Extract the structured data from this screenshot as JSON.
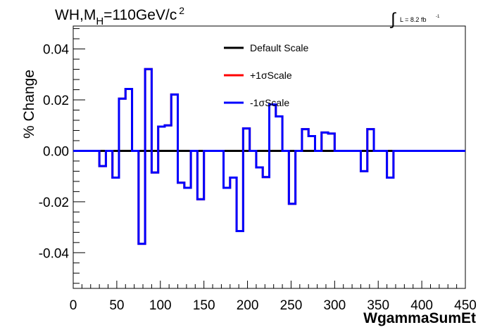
{
  "chart_data": {
    "type": "line",
    "title_main": "WH,M",
    "title_sub": "H",
    "title_rest": "=110GeV/c",
    "title_sup": "2",
    "lumi_label": "L = 8.2 fb",
    "lumi_sup": "-1",
    "xlabel": "WgammaSumEt",
    "ylabel": "% Change",
    "xlim": [
      0,
      450
    ],
    "ylim": [
      -0.054,
      0.049
    ],
    "x_ticks": [
      "0",
      "50",
      "100",
      "150",
      "200",
      "250",
      "300",
      "350",
      "400",
      "450"
    ],
    "x_tick_values": [
      0,
      50,
      100,
      150,
      200,
      250,
      300,
      350,
      400,
      450
    ],
    "y_ticks": [
      "-0.04",
      "-0.02",
      "0.00",
      "0.02",
      "0.04"
    ],
    "y_tick_values": [
      -0.04,
      -0.02,
      0.0,
      0.02,
      0.04
    ],
    "grid": false,
    "legend_position": "top-right",
    "bin_width": 7.5,
    "series": [
      {
        "name": "Default Scale",
        "color": "#000000",
        "values": [
          0,
          0,
          0,
          0,
          0,
          0,
          0,
          0,
          0,
          0,
          0,
          0,
          0,
          0,
          0,
          0,
          0,
          0,
          0,
          0,
          0,
          0,
          0,
          0,
          0,
          0,
          0,
          0,
          0,
          0,
          0,
          0,
          0,
          0,
          0,
          0,
          0,
          0,
          0,
          0,
          0,
          0,
          0,
          0,
          0,
          0,
          0,
          0,
          0,
          0,
          0,
          0,
          0,
          0,
          0,
          0,
          0,
          0,
          0,
          0
        ]
      },
      {
        "name": "+1σScale",
        "color": "#ff0000",
        "values": [
          0,
          0,
          0,
          0,
          -0.006,
          0,
          -0.0105,
          0.0205,
          0.0243,
          0,
          -0.0365,
          0.0321,
          -0.0085,
          0.0095,
          0.01,
          0.0221,
          -0.0125,
          -0.0145,
          0,
          -0.019,
          0,
          0,
          0,
          -0.0145,
          -0.0105,
          -0.0315,
          0.0088,
          0,
          -0.0065,
          -0.0103,
          0.0182,
          0.0135,
          0,
          -0.0208,
          0,
          0.0085,
          0.0058,
          0,
          0.0072,
          0.0068,
          0,
          0,
          0,
          0,
          -0.008,
          0.0085,
          0,
          0,
          -0.0105,
          0,
          0,
          0,
          0,
          0,
          0,
          0,
          0,
          0,
          0,
          0
        ]
      },
      {
        "name": "-1σScale",
        "color": "#0000ff",
        "values": [
          0,
          0,
          0,
          0,
          -0.006,
          0,
          -0.0105,
          0.0205,
          0.0243,
          0,
          -0.0365,
          0.0321,
          -0.0085,
          0.0095,
          0.01,
          0.0221,
          -0.0125,
          -0.0145,
          0,
          -0.019,
          0,
          0,
          0,
          -0.0145,
          -0.0105,
          -0.0315,
          0.0088,
          0,
          -0.0065,
          -0.0103,
          0.0182,
          0.0135,
          0,
          -0.0208,
          0,
          0.0085,
          0.0058,
          0,
          0.0072,
          0.0068,
          0,
          0,
          0,
          0,
          -0.008,
          0.0085,
          0,
          0,
          -0.0105,
          0,
          0,
          0,
          0,
          0,
          0,
          0,
          0,
          0,
          0,
          0
        ]
      }
    ]
  }
}
